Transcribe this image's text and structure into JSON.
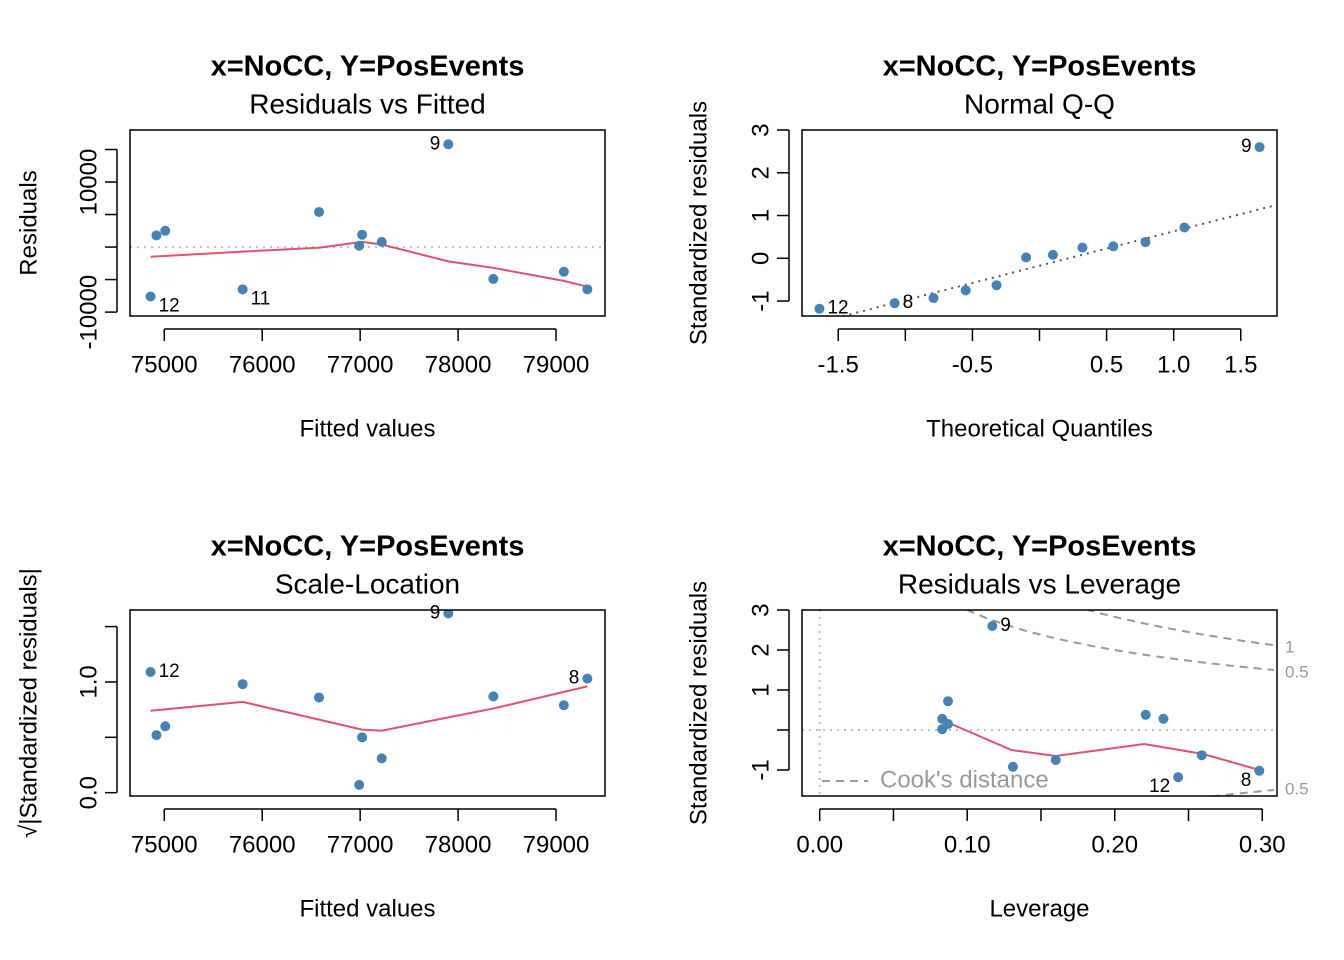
{
  "colors": {
    "point": "#4682B4",
    "smooth": "#DF536B",
    "reference": "#BEBEBE",
    "qq_line": "#555555",
    "cook": "#999999",
    "axis": "#000000"
  },
  "chart_data": [
    {
      "type": "scatter",
      "title": "x=NoCC, Y=PosEvents",
      "subtitle": "Residuals vs Fitted",
      "xlabel": "Fitted values",
      "ylabel": "Residuals",
      "xlim": [
        74650,
        79500
      ],
      "ylim": [
        -10600,
        18000
      ],
      "xticks": [
        {
          "value": 75000,
          "label": "75000"
        },
        {
          "value": 76000,
          "label": "76000"
        },
        {
          "value": 77000,
          "label": "77000"
        },
        {
          "value": 78000,
          "label": "78000"
        },
        {
          "value": 79000,
          "label": "79000"
        }
      ],
      "yticks_minor": [
        -10000,
        -5000,
        0,
        5000,
        10000,
        15000
      ],
      "yticks": [
        {
          "value": -10000,
          "label": "-10000"
        },
        {
          "value": 10000,
          "label": "10000"
        }
      ],
      "hline": 0,
      "points": [
        {
          "x": 74860,
          "y": -7600,
          "label": "12"
        },
        {
          "x": 74920,
          "y": 1800,
          "label": ""
        },
        {
          "x": 75010,
          "y": 2500,
          "label": ""
        },
        {
          "x": 75800,
          "y": -6500,
          "label": "11"
        },
        {
          "x": 76580,
          "y": 5400,
          "label": ""
        },
        {
          "x": 76990,
          "y": 200,
          "label": ""
        },
        {
          "x": 77020,
          "y": 1900,
          "label": ""
        },
        {
          "x": 77220,
          "y": 800,
          "label": ""
        },
        {
          "x": 77900,
          "y": 15800,
          "label": "9"
        },
        {
          "x": 78360,
          "y": -4900,
          "label": ""
        },
        {
          "x": 79080,
          "y": -3800,
          "label": ""
        },
        {
          "x": 79320,
          "y": -6500,
          "label": ""
        }
      ],
      "smooth": [
        [
          74860,
          -1500
        ],
        [
          75800,
          -700
        ],
        [
          76580,
          -100
        ],
        [
          77020,
          800
        ],
        [
          77220,
          400
        ],
        [
          77900,
          -2200
        ],
        [
          78360,
          -3200
        ],
        [
          79080,
          -5200
        ],
        [
          79320,
          -6100
        ]
      ]
    },
    {
      "type": "scatter",
      "title": "x=NoCC, Y=PosEvents",
      "subtitle": "Normal Q-Q",
      "xlabel": "Theoretical Quantiles",
      "ylabel": "Standardized residuals",
      "xlim": [
        -1.77,
        1.77
      ],
      "ylim": [
        -1.35,
        3.0
      ],
      "xticks": [
        {
          "value": -1.5,
          "label": "-1.5"
        },
        {
          "value": -1.0,
          "label": ""
        },
        {
          "value": -0.5,
          "label": "-0.5"
        },
        {
          "value": 0.0,
          "label": ""
        },
        {
          "value": 0.5,
          "label": "0.5"
        },
        {
          "value": 1.0,
          "label": "1.0"
        },
        {
          "value": 1.5,
          "label": "1.5"
        }
      ],
      "yticks": [
        {
          "value": -1,
          "label": "-1"
        },
        {
          "value": 0,
          "label": "0"
        },
        {
          "value": 1,
          "label": "1"
        },
        {
          "value": 2,
          "label": "2"
        },
        {
          "value": 3,
          "label": "3"
        }
      ],
      "qqline": [
        [
          -1.77,
          -1.6
        ],
        [
          1.77,
          1.25
        ]
      ],
      "points": [
        {
          "x": -1.64,
          "y": -1.18,
          "label": "12"
        },
        {
          "x": -1.08,
          "y": -1.05,
          "label": "8"
        },
        {
          "x": -0.79,
          "y": -0.93,
          "label": ""
        },
        {
          "x": -0.55,
          "y": -0.75,
          "label": ""
        },
        {
          "x": -0.32,
          "y": -0.63,
          "label": ""
        },
        {
          "x": -0.1,
          "y": 0.02,
          "label": ""
        },
        {
          "x": 0.1,
          "y": 0.08,
          "label": ""
        },
        {
          "x": 0.32,
          "y": 0.25,
          "label": ""
        },
        {
          "x": 0.55,
          "y": 0.28,
          "label": ""
        },
        {
          "x": 0.79,
          "y": 0.38,
          "label": ""
        },
        {
          "x": 1.08,
          "y": 0.72,
          "label": ""
        },
        {
          "x": 1.64,
          "y": 2.6,
          "label": "9"
        }
      ]
    },
    {
      "type": "scatter",
      "title": "x=NoCC, Y=PosEvents",
      "subtitle": "Scale-Location",
      "xlabel": "Fitted values",
      "ylabel": "√|Standardized residuals|",
      "xlim": [
        74650,
        79500
      ],
      "ylim": [
        -0.03,
        1.65
      ],
      "xticks": [
        {
          "value": 75000,
          "label": "75000"
        },
        {
          "value": 76000,
          "label": "76000"
        },
        {
          "value": 77000,
          "label": "77000"
        },
        {
          "value": 78000,
          "label": "78000"
        },
        {
          "value": 79000,
          "label": "79000"
        }
      ],
      "yticks_minor": [
        0.0,
        0.5,
        1.0,
        1.5
      ],
      "yticks": [
        {
          "value": 0.0,
          "label": "0.0"
        },
        {
          "value": 1.0,
          "label": "1.0"
        }
      ],
      "points": [
        {
          "x": 74860,
          "y": 1.09,
          "label": "12"
        },
        {
          "x": 74920,
          "y": 0.52,
          "label": ""
        },
        {
          "x": 75010,
          "y": 0.6,
          "label": ""
        },
        {
          "x": 75800,
          "y": 0.98,
          "label": ""
        },
        {
          "x": 76580,
          "y": 0.86,
          "label": ""
        },
        {
          "x": 76990,
          "y": 0.07,
          "label": ""
        },
        {
          "x": 77020,
          "y": 0.5,
          "label": ""
        },
        {
          "x": 77220,
          "y": 0.31,
          "label": ""
        },
        {
          "x": 77900,
          "y": 1.62,
          "label": "9"
        },
        {
          "x": 78360,
          "y": 0.87,
          "label": ""
        },
        {
          "x": 79080,
          "y": 0.79,
          "label": ""
        },
        {
          "x": 79320,
          "y": 1.03,
          "label": "8"
        }
      ],
      "smooth": [
        [
          74860,
          0.74
        ],
        [
          75800,
          0.82
        ],
        [
          76580,
          0.66
        ],
        [
          77020,
          0.57
        ],
        [
          77220,
          0.56
        ],
        [
          77900,
          0.68
        ],
        [
          78360,
          0.76
        ],
        [
          79080,
          0.91
        ],
        [
          79320,
          0.96
        ]
      ]
    },
    {
      "type": "scatter",
      "title": "x=NoCC, Y=PosEvents",
      "subtitle": "Residuals vs Leverage",
      "xlabel": "Leverage",
      "ylabel": "Standardized residuals",
      "xlim": [
        -0.012,
        0.31
      ],
      "ylim": [
        -1.65,
        3.0
      ],
      "xticks": [
        {
          "value": 0.0,
          "label": "0.00"
        },
        {
          "value": 0.05,
          "label": ""
        },
        {
          "value": 0.1,
          "label": "0.10"
        },
        {
          "value": 0.15,
          "label": ""
        },
        {
          "value": 0.2,
          "label": "0.20"
        },
        {
          "value": 0.25,
          "label": ""
        },
        {
          "value": 0.3,
          "label": "0.30"
        }
      ],
      "yticks": [
        {
          "value": -1,
          "label": "-1"
        },
        {
          "value": 0,
          "label": ""
        },
        {
          "value": 1,
          "label": "1"
        },
        {
          "value": 2,
          "label": "2"
        },
        {
          "value": 3,
          "label": "3"
        }
      ],
      "hline": 0,
      "vline": 0,
      "legend": {
        "label": "Cook's distance",
        "position": "bottom-left"
      },
      "cook_labels": [
        {
          "label": "1",
          "y": 2.05
        },
        {
          "label": "0.5",
          "y": 1.43
        },
        {
          "label": "0.5",
          "y": -1.5
        }
      ],
      "points": [
        {
          "x": 0.117,
          "y": 2.6,
          "label": "9"
        },
        {
          "x": 0.083,
          "y": 0.28,
          "label": ""
        },
        {
          "x": 0.083,
          "y": 0.02,
          "label": ""
        },
        {
          "x": 0.087,
          "y": 0.72,
          "label": ""
        },
        {
          "x": 0.087,
          "y": 0.15,
          "label": ""
        },
        {
          "x": 0.131,
          "y": -0.92,
          "label": ""
        },
        {
          "x": 0.16,
          "y": -0.75,
          "label": ""
        },
        {
          "x": 0.221,
          "y": 0.38,
          "label": ""
        },
        {
          "x": 0.233,
          "y": 0.28,
          "label": ""
        },
        {
          "x": 0.243,
          "y": -1.18,
          "label": "12"
        },
        {
          "x": 0.259,
          "y": -0.63,
          "label": ""
        },
        {
          "x": 0.298,
          "y": -1.02,
          "label": "8"
        }
      ],
      "smooth": [
        [
          0.083,
          0.25
        ],
        [
          0.13,
          -0.5
        ],
        [
          0.16,
          -0.65
        ],
        [
          0.19,
          -0.5
        ],
        [
          0.22,
          -0.35
        ],
        [
          0.26,
          -0.6
        ],
        [
          0.298,
          -1.0
        ]
      ]
    }
  ]
}
